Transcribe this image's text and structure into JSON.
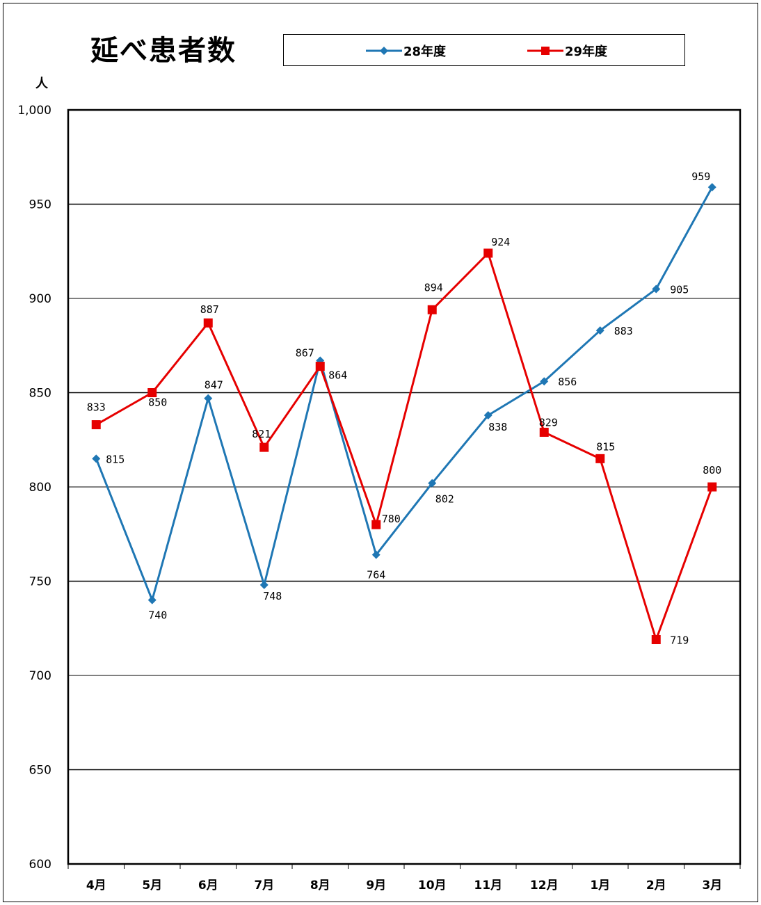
{
  "title": "延べ患者数",
  "unit_label": "人",
  "legend": [
    {
      "name": "28年度",
      "color": "#1f77b4",
      "marker": "diamond"
    },
    {
      "name": "29年度",
      "color": "#e60000",
      "marker": "square"
    }
  ],
  "chart_data": {
    "type": "line",
    "title": "延べ患者数",
    "ylabel": "人",
    "categories": [
      "4月",
      "5月",
      "6月",
      "7月",
      "8月",
      "9月",
      "10月",
      "11月",
      "12月",
      "1月",
      "2月",
      "3月"
    ],
    "ylim": [
      600,
      1000
    ],
    "yticks": [
      600,
      650,
      700,
      750,
      800,
      850,
      900,
      950,
      1000
    ],
    "ytick_labels": [
      "600",
      "650",
      "700",
      "750",
      "800",
      "850",
      "900",
      "950",
      "1,000"
    ],
    "grid": true,
    "legend_position": "top",
    "series": [
      {
        "name": "28年度",
        "color": "#1f77b4",
        "marker": "diamond",
        "values": [
          815,
          740,
          847,
          748,
          867,
          764,
          802,
          838,
          856,
          883,
          905,
          959
        ]
      },
      {
        "name": "29年度",
        "color": "#e60000",
        "marker": "square",
        "values": [
          833,
          850,
          887,
          821,
          864,
          780,
          894,
          924,
          829,
          815,
          719,
          800
        ]
      }
    ]
  }
}
